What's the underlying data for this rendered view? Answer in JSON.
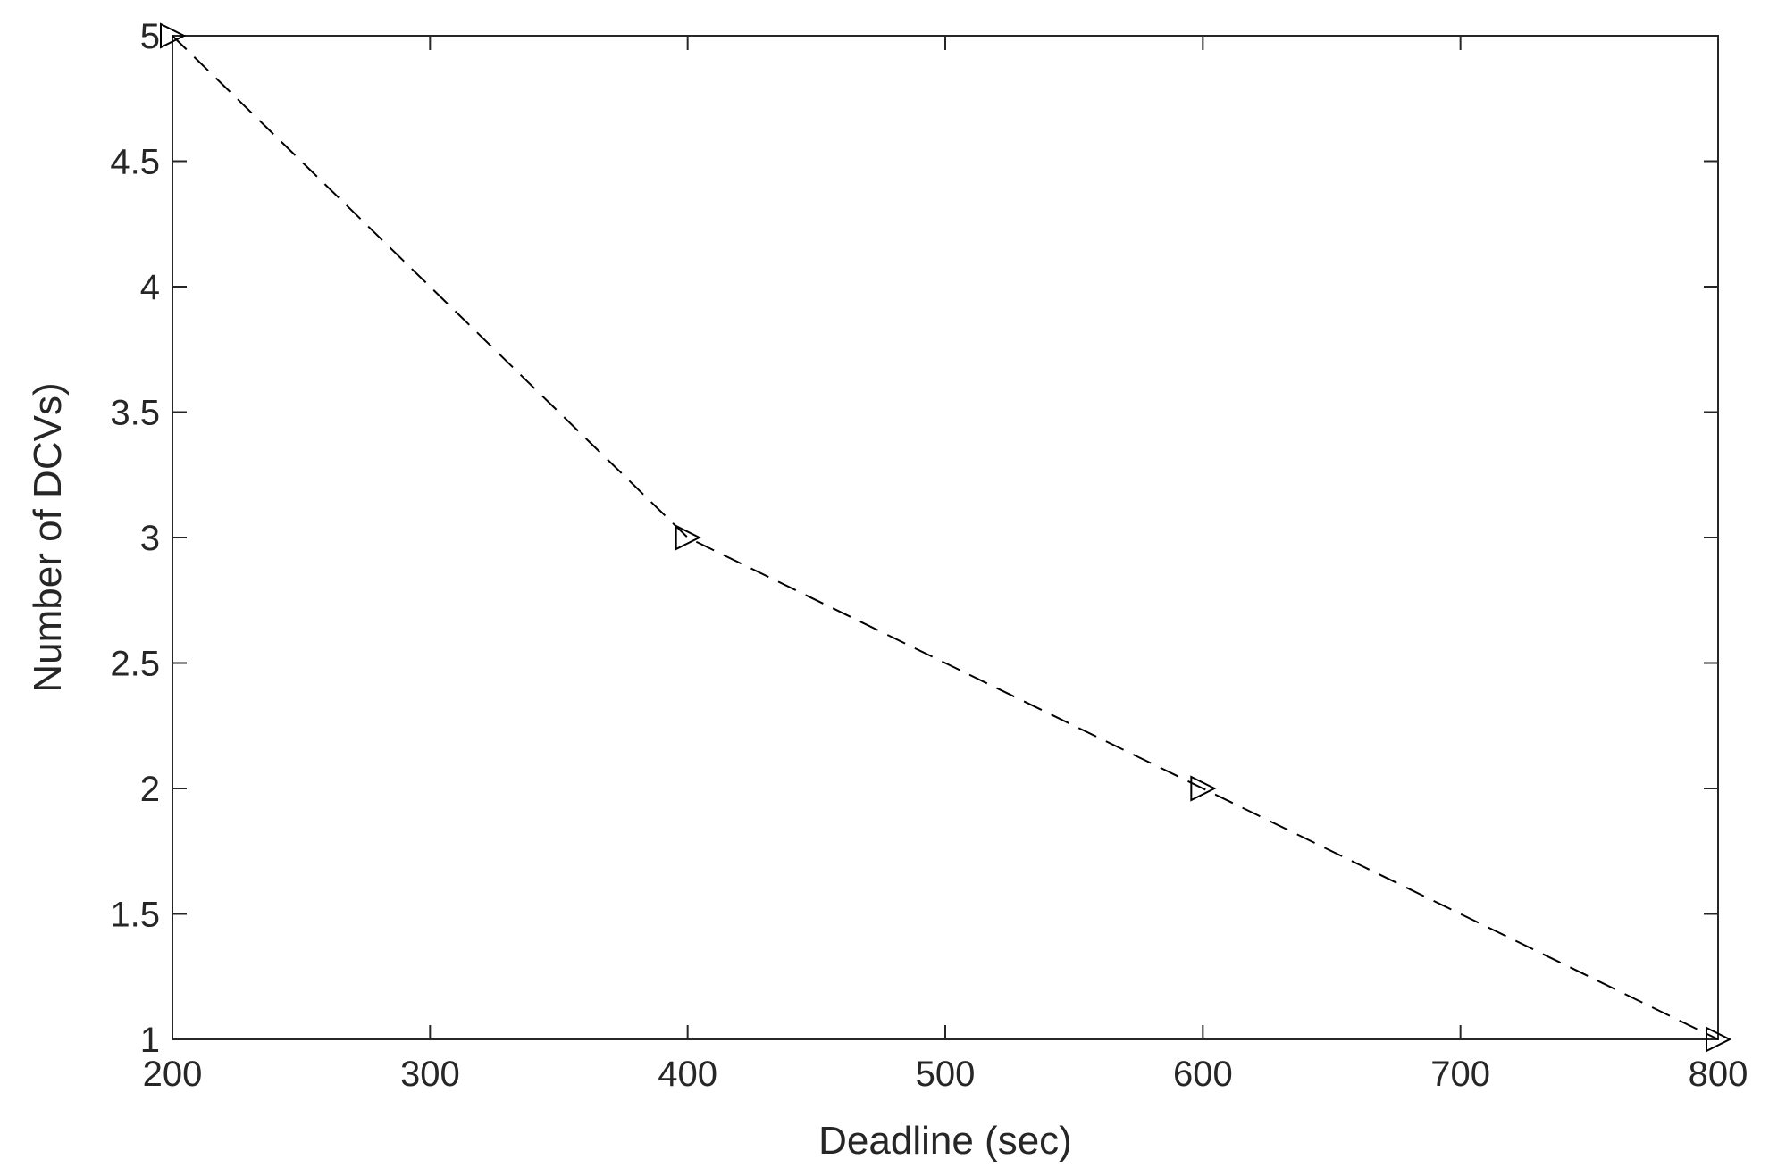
{
  "chart_data": {
    "type": "line",
    "title": "",
    "xlabel": "Deadline (sec)",
    "ylabel": "Number of DCVs)",
    "xlim": [
      200,
      800
    ],
    "ylim": [
      1,
      5
    ],
    "xticks": [
      200,
      300,
      400,
      500,
      600,
      700,
      800
    ],
    "yticks": [
      1,
      1.5,
      2,
      2.5,
      3,
      3.5,
      4,
      4.5,
      5
    ],
    "xtick_labels": [
      "200",
      "300",
      "400",
      "500",
      "600",
      "700",
      "800"
    ],
    "ytick_labels": [
      "1",
      "1.5",
      "2",
      "2.5",
      "3",
      "3.5",
      "4",
      "4.5",
      "5"
    ],
    "grid": false,
    "legend": "none",
    "series": [
      {
        "x": [
          200,
          400,
          600,
          800
        ],
        "values": [
          5,
          3,
          2,
          1
        ],
        "line_style": "dashed",
        "marker": "triangle-right",
        "color": "#000000"
      }
    ]
  }
}
